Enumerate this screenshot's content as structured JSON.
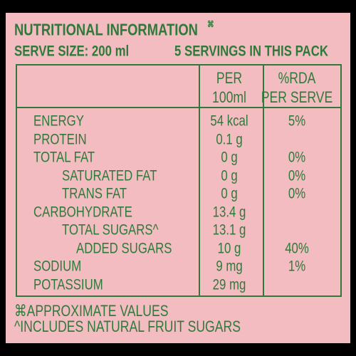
{
  "header": {
    "title": "NUTRITIONAL INFORMATION",
    "title_mark": "⌘",
    "serve_size": "SERVE SIZE: 200 ml",
    "servings": "5 SERVINGS IN THIS PACK"
  },
  "table": {
    "columns": [
      [
        "PER",
        "100ml"
      ],
      [
        "%RDA",
        "PER SERVE"
      ]
    ],
    "rows": [
      {
        "name": "ENERGY",
        "per_100ml": "54 kcal",
        "rda": "5%"
      },
      {
        "name": "PROTEIN",
        "per_100ml": "0.1 g"
      },
      {
        "name": "TOTAL FAT",
        "per_100ml": "0 g",
        "rda": "0%",
        "sub": [
          {
            "name": "SATURATED FAT",
            "per_100ml": "0 g",
            "rda": "0%"
          },
          {
            "name": "TRANS FAT",
            "per_100ml": "0 g",
            "rda": "0%"
          }
        ]
      },
      {
        "name": "CARBOHYDRATE",
        "per_100ml": "13.4 g",
        "sub": [
          {
            "name": "TOTAL SUGARS^",
            "per_100ml": "13.1 g",
            "sub": [
              {
                "name": "ADDED SUGARS",
                "per_100ml": "10 g",
                "rda": "40%"
              }
            ]
          }
        ]
      },
      {
        "name": "SODIUM",
        "per_100ml": "9 mg",
        "rda": "1%"
      },
      {
        "name": "POTASSIUM",
        "per_100ml": "29 mg"
      }
    ]
  },
  "footer": {
    "notes": [
      "⌘APPROXIMATE VALUES",
      "^INCLUDES NATURAL FRUIT SUGARS"
    ]
  }
}
